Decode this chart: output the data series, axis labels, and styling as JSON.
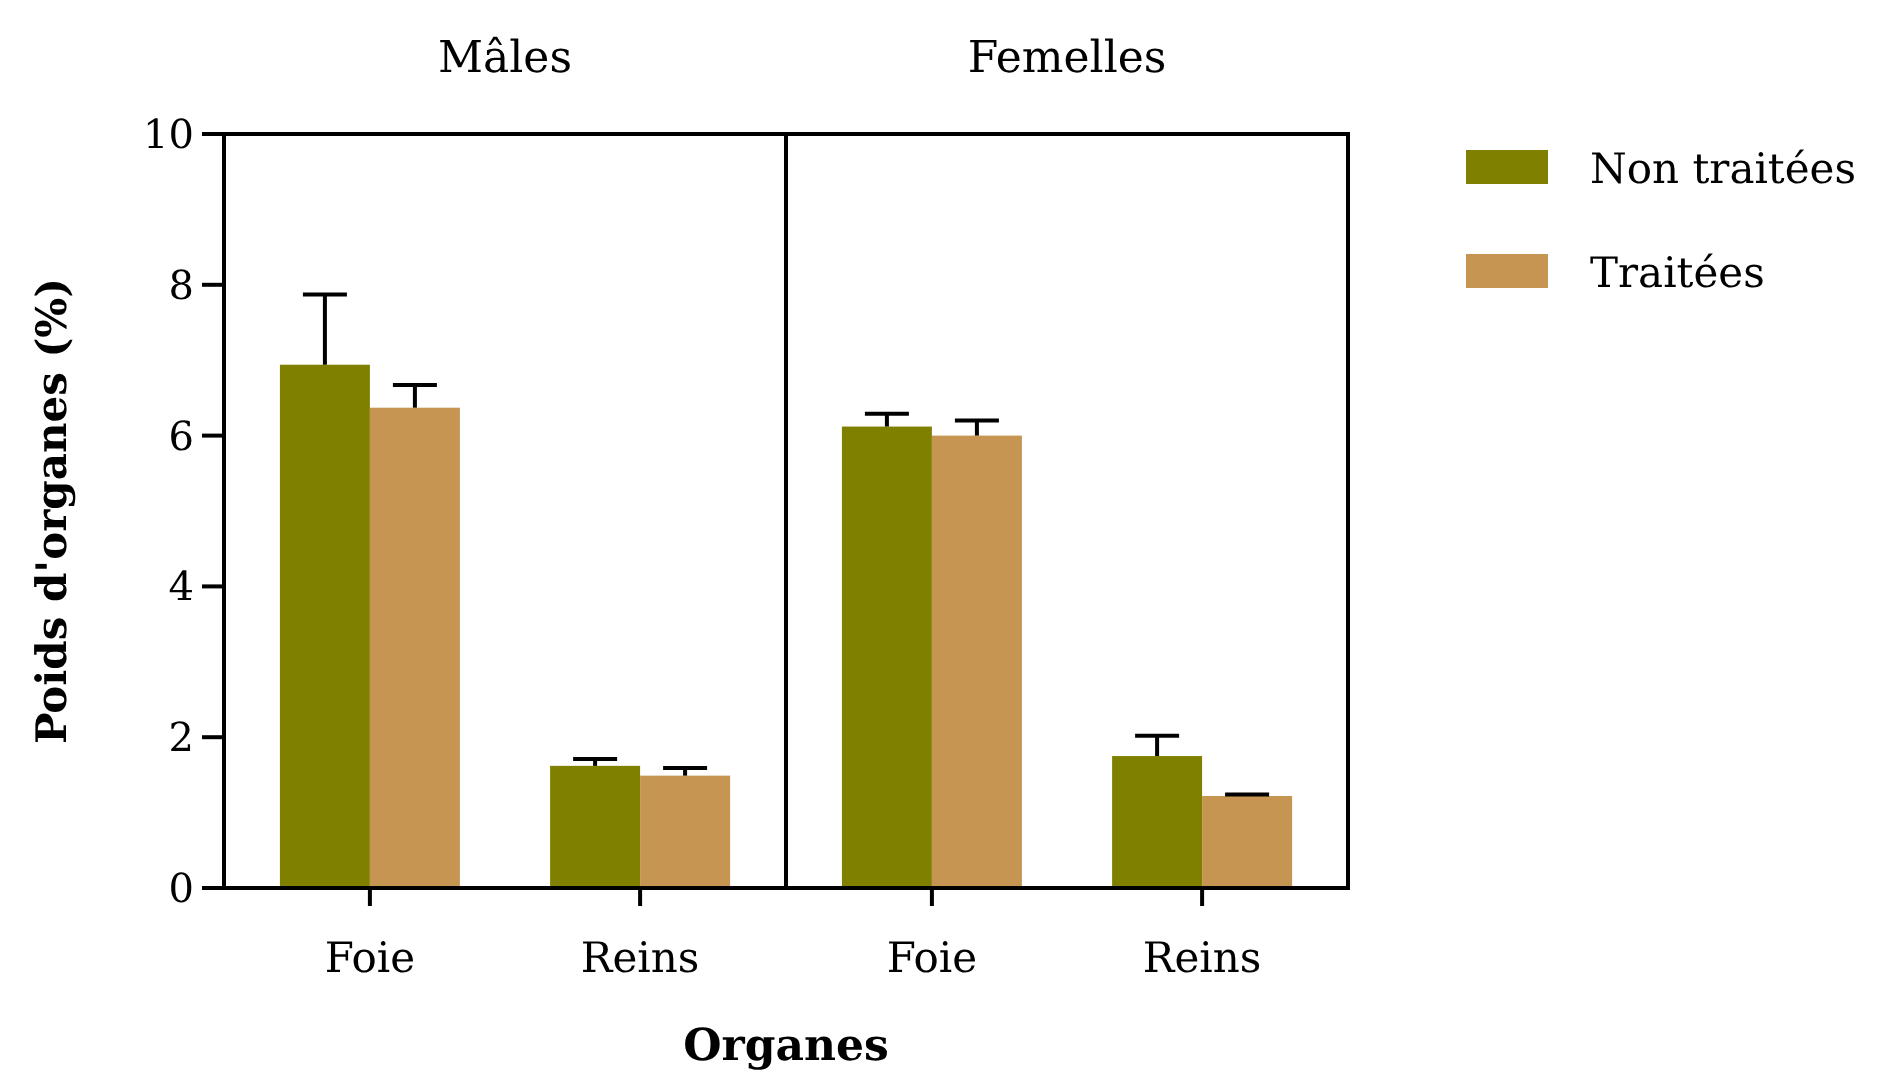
{
  "chart_data": [
    {
      "type": "bar",
      "title": "Mâles",
      "ylabel": "Poids d'organes (%)",
      "xlabel": "Organes",
      "categories": [
        "Foie",
        "Reins"
      ],
      "ylim": [
        0,
        10
      ],
      "yticks": [
        0,
        2,
        4,
        6,
        8,
        10
      ],
      "grid": false,
      "series": [
        {
          "color": "#808000",
          "values": [
            6.94,
            1.62
          ],
          "errors": [
            [
              6.94,
              7.87
            ],
            [
              1.62,
              1.71
            ]
          ]
        },
        {
          "color": "#c69551",
          "values": [
            6.37,
            1.49
          ],
          "errors": [
            [
              6.37,
              6.67
            ],
            [
              1.49,
              1.59
            ]
          ]
        }
      ]
    },
    {
      "type": "bar",
      "title": "Femelles",
      "categories": [
        "Foie",
        "Reins"
      ],
      "ylim": [
        0,
        10
      ],
      "tick_labels": "x",
      "grid": false,
      "legend": "right",
      "series": [
        {
          "name": "Non traitées",
          "color": "#808000",
          "values": [
            6.12,
            1.75
          ],
          "errors": [
            [
              6.12,
              6.29
            ],
            [
              1.75,
              2.02
            ]
          ]
        },
        {
          "name": "Traitées",
          "color": "#c69551",
          "values": [
            6.0,
            1.22
          ],
          "errors": [
            [
              6.0,
              6.2
            ],
            [
              1.22,
              1.24
            ]
          ]
        }
      ]
    }
  ]
}
